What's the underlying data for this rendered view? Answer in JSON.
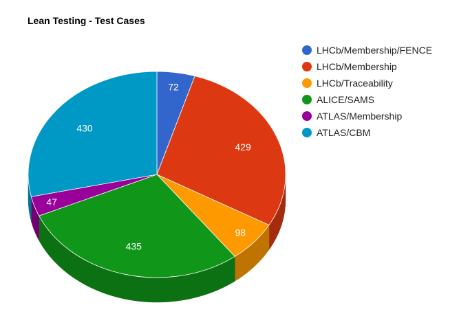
{
  "chart_data": {
    "type": "pie",
    "title": "Lean Testing - Test Cases",
    "slices": [
      {
        "label": "LHCb/Membership/FENCE",
        "value": 72,
        "color": "#3366cc",
        "side_color": "#26509a"
      },
      {
        "label": "LHCb/Membership",
        "value": 429,
        "color": "#dc3912",
        "side_color": "#a52b0e"
      },
      {
        "label": "LHCb/Traceability",
        "value": 98,
        "color": "#ff9900",
        "side_color": "#bf7300"
      },
      {
        "label": "ALICE/SAMS",
        "value": 435,
        "color": "#109618",
        "side_color": "#0c7112"
      },
      {
        "label": "ATLAS/Membership",
        "value": 47,
        "color": "#990099",
        "side_color": "#730073"
      },
      {
        "label": "ATLAS/CBM",
        "value": 430,
        "color": "#0099c6",
        "side_color": "#007395"
      }
    ],
    "legend_position": "right",
    "three_d": true
  }
}
